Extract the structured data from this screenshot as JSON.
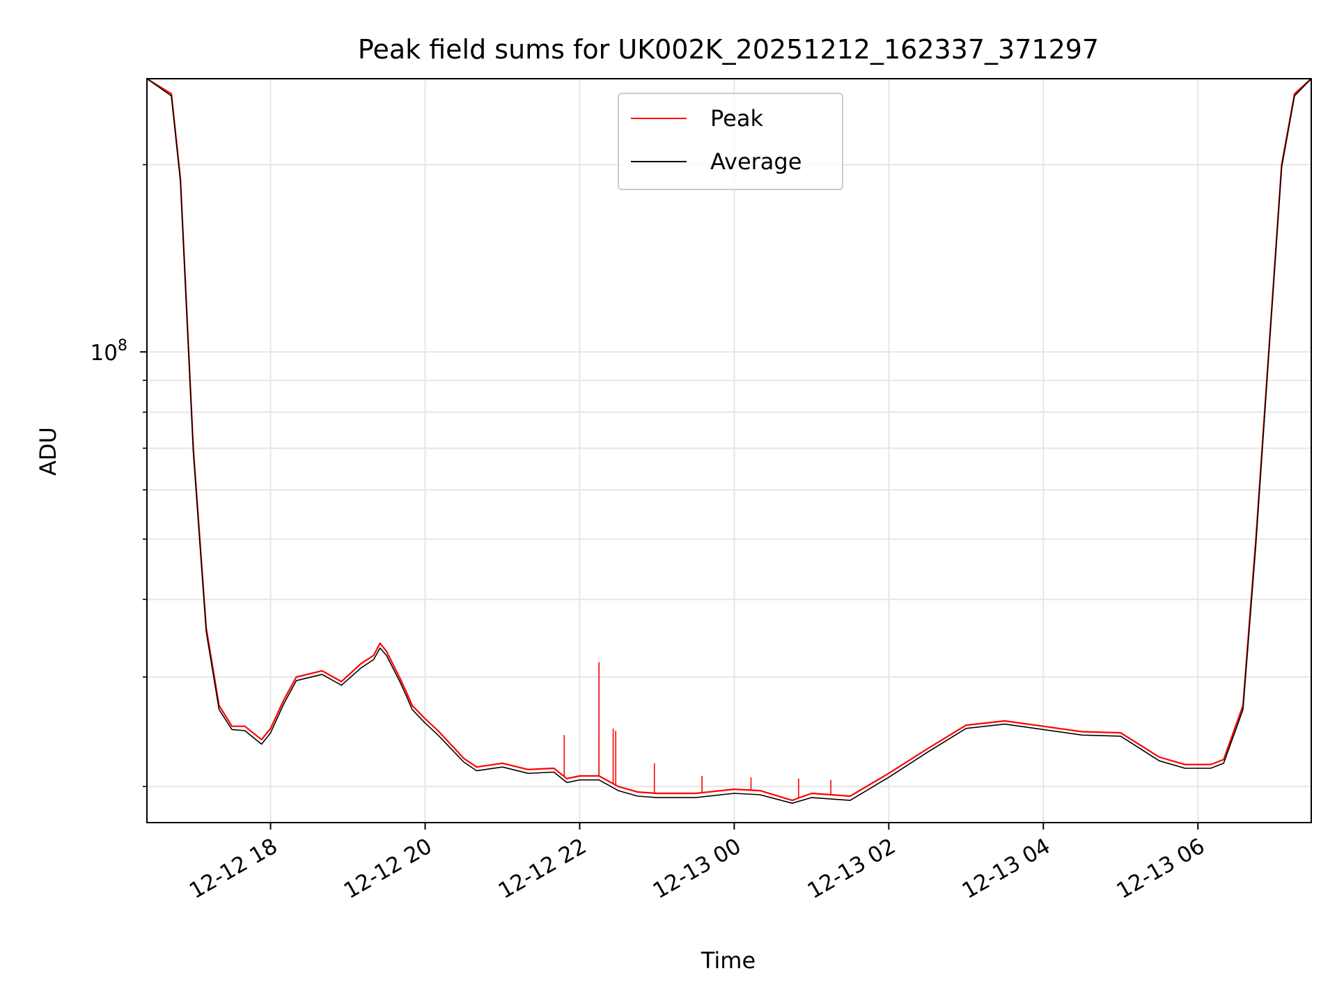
{
  "chart_data": {
    "type": "line",
    "title": "Peak field sums for UK002K_20251212_162337_371297",
    "xlabel": "Time",
    "ylabel": "ADU",
    "y_scale": "log",
    "ylim": [
      17500000,
      275000000
    ],
    "xlim": [
      "2025-12-12 16:24",
      "2025-12-13 07:28"
    ],
    "x_ticks": [
      {
        "value": "2025-12-12 18:00",
        "label": "12-12 18"
      },
      {
        "value": "2025-12-12 20:00",
        "label": "12-12 20"
      },
      {
        "value": "2025-12-12 22:00",
        "label": "12-12 22"
      },
      {
        "value": "2025-12-13 00:00",
        "label": "12-13 00"
      },
      {
        "value": "2025-12-13 02:00",
        "label": "12-13 02"
      },
      {
        "value": "2025-12-13 04:00",
        "label": "12-13 04"
      },
      {
        "value": "2025-12-13 06:00",
        "label": "12-13 06"
      }
    ],
    "y_ticks": [
      {
        "value": 100000000,
        "base": "10",
        "exp": "8"
      }
    ],
    "grid": true,
    "legend": "upper center",
    "series": [
      {
        "name": "Peak",
        "color": "#ff0000",
        "x": [
          "2025-12-12 16:24",
          "2025-12-12 16:43",
          "2025-12-12 16:50",
          "2025-12-12 17:00",
          "2025-12-12 17:10",
          "2025-12-12 17:20",
          "2025-12-12 17:30",
          "2025-12-12 17:40",
          "2025-12-12 17:53",
          "2025-12-12 18:00",
          "2025-12-12 18:10",
          "2025-12-12 18:20",
          "2025-12-12 18:40",
          "2025-12-12 18:55",
          "2025-12-12 19:10",
          "2025-12-12 19:20",
          "2025-12-12 19:25",
          "2025-12-12 19:30",
          "2025-12-12 19:40",
          "2025-12-12 19:45",
          "2025-12-12 19:50",
          "2025-12-12 20:00",
          "2025-12-12 20:10",
          "2025-12-12 20:30",
          "2025-12-12 20:40",
          "2025-12-12 21:00",
          "2025-12-12 21:20",
          "2025-12-12 21:40",
          "2025-12-12 21:50",
          "2025-12-12 22:00",
          "2025-12-12 22:15",
          "2025-12-12 22:30",
          "2025-12-12 22:45",
          "2025-12-12 23:00",
          "2025-12-12 23:30",
          "2025-12-13 00:00",
          "2025-12-13 00:20",
          "2025-12-13 00:45",
          "2025-12-13 01:00",
          "2025-12-13 01:30",
          "2025-12-13 02:00",
          "2025-12-13 02:30",
          "2025-12-13 03:00",
          "2025-12-13 03:30",
          "2025-12-13 04:00",
          "2025-12-13 04:30",
          "2025-12-13 05:00",
          "2025-12-13 05:30",
          "2025-12-13 05:50",
          "2025-12-13 06:10",
          "2025-12-13 06:20",
          "2025-12-13 06:35",
          "2025-12-13 06:45",
          "2025-12-13 06:55",
          "2025-12-13 07:05",
          "2025-12-13 07:15",
          "2025-12-13 07:28"
        ],
        "y": [
          275000000,
          260000000,
          190000000,
          70000000,
          36000000,
          27000000,
          25000000,
          25000000,
          23800000,
          24800000,
          27500000,
          30000000,
          30700000,
          29500000,
          31500000,
          32500000,
          34000000,
          33000000,
          30000000,
          28500000,
          27000000,
          25700000,
          24600000,
          22200000,
          21500000,
          21800000,
          21300000,
          21400000,
          20600000,
          20800000,
          20800000,
          20000000,
          19600000,
          19500000,
          19500000,
          19800000,
          19700000,
          19000000,
          19500000,
          19300000,
          21000000,
          23000000,
          25100000,
          25500000,
          25000000,
          24500000,
          24400000,
          22300000,
          21700000,
          21700000,
          22100000,
          27000000,
          50000000,
          100000000,
          200000000,
          260000000,
          275000000
        ]
      },
      {
        "name": "Average",
        "color": "#000000",
        "x": [
          "2025-12-12 16:24",
          "2025-12-12 16:43",
          "2025-12-12 16:50",
          "2025-12-12 17:00",
          "2025-12-12 17:10",
          "2025-12-12 17:20",
          "2025-12-12 17:30",
          "2025-12-12 17:40",
          "2025-12-12 17:53",
          "2025-12-12 18:00",
          "2025-12-12 18:10",
          "2025-12-12 18:20",
          "2025-12-12 18:40",
          "2025-12-12 18:55",
          "2025-12-12 19:10",
          "2025-12-12 19:20",
          "2025-12-12 19:25",
          "2025-12-12 19:30",
          "2025-12-12 19:40",
          "2025-12-12 19:45",
          "2025-12-12 19:50",
          "2025-12-12 20:00",
          "2025-12-12 20:10",
          "2025-12-12 20:30",
          "2025-12-12 20:40",
          "2025-12-12 21:00",
          "2025-12-12 21:20",
          "2025-12-12 21:40",
          "2025-12-12 21:50",
          "2025-12-12 22:00",
          "2025-12-12 22:15",
          "2025-12-12 22:30",
          "2025-12-12 22:45",
          "2025-12-12 23:00",
          "2025-12-12 23:30",
          "2025-12-13 00:00",
          "2025-12-13 00:20",
          "2025-12-13 00:45",
          "2025-12-13 01:00",
          "2025-12-13 01:30",
          "2025-12-13 02:00",
          "2025-12-13 02:30",
          "2025-12-13 03:00",
          "2025-12-13 03:30",
          "2025-12-13 04:00",
          "2025-12-13 04:30",
          "2025-12-13 05:00",
          "2025-12-13 05:30",
          "2025-12-13 05:50",
          "2025-12-13 06:10",
          "2025-12-13 06:20",
          "2025-12-13 06:35",
          "2025-12-13 06:45",
          "2025-12-13 06:55",
          "2025-12-13 07:05",
          "2025-12-13 07:15",
          "2025-12-13 07:28"
        ],
        "y": [
          275000000,
          258000000,
          188000000,
          69000000,
          35500000,
          26600000,
          24700000,
          24600000,
          23400000,
          24400000,
          27100000,
          29600000,
          30300000,
          29100000,
          31000000,
          32000000,
          33400000,
          32500000,
          29600000,
          28100000,
          26600000,
          25300000,
          24200000,
          21900000,
          21200000,
          21500000,
          21000000,
          21100000,
          20300000,
          20500000,
          20500000,
          19700000,
          19300000,
          19200000,
          19200000,
          19500000,
          19400000,
          18800000,
          19200000,
          19000000,
          20700000,
          22700000,
          24800000,
          25200000,
          24700000,
          24200000,
          24100000,
          22000000,
          21400000,
          21400000,
          21800000,
          26600000,
          49000000,
          99000000,
          198000000,
          258000000,
          275000000
        ]
      }
    ],
    "spikes": [
      {
        "series": "Peak",
        "x": "2025-12-12 21:48",
        "y": 24200000
      },
      {
        "series": "Peak",
        "x": "2025-12-12 22:15",
        "y": 31700000
      },
      {
        "series": "Peak",
        "x": "2025-12-12 22:15",
        "y": 24600000
      },
      {
        "series": "Peak",
        "x": "2025-12-12 22:26",
        "y": 24800000
      },
      {
        "series": "Peak",
        "x": "2025-12-12 22:28",
        "y": 24600000
      },
      {
        "series": "Peak",
        "x": "2025-12-12 22:58",
        "y": 21800000
      },
      {
        "series": "Peak",
        "x": "2025-12-12 23:35",
        "y": 20800000
      },
      {
        "series": "Peak",
        "x": "2025-12-13 00:13",
        "y": 20700000
      },
      {
        "series": "Peak",
        "x": "2025-12-13 00:50",
        "y": 20600000
      },
      {
        "series": "Peak",
        "x": "2025-12-13 01:15",
        "y": 20500000
      }
    ]
  }
}
